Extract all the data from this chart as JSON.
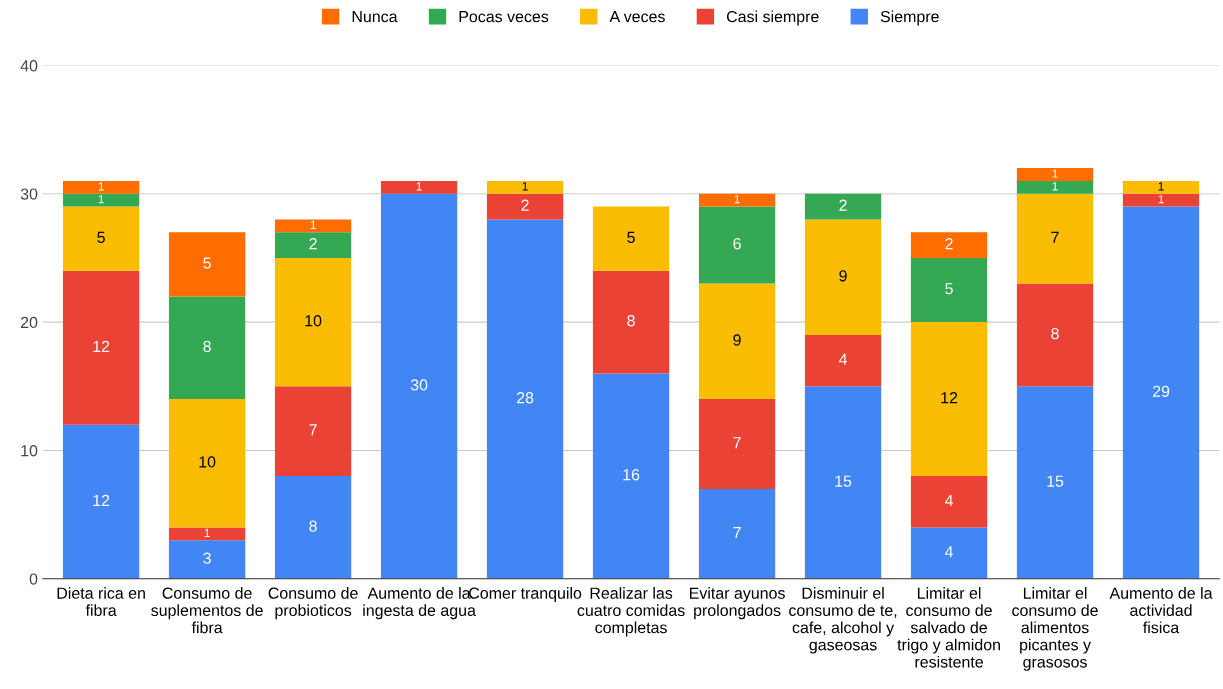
{
  "chart_data": {
    "type": "bar",
    "stacked": true,
    "categories": [
      "Dieta rica en fibra",
      "Consumo de suplementos de fibra",
      "Consumo de probioticos",
      "Aumento de la ingesta de agua",
      "Comer tranquilo",
      "Realizar las cuatro comidas completas",
      "Evitar ayunos prolongados",
      "Disminuir el consumo de te, cafe, alcohol y gaseosas",
      "Limitar el consumo de salvado de trigo y almidon resistente",
      "Limitar el consumo de alimentos picantes y grasosos",
      "Aumento de la actividad fisica"
    ],
    "series": [
      {
        "name": "Siempre",
        "color": "#4285f4",
        "values": [
          12,
          3,
          8,
          30,
          28,
          16,
          7,
          15,
          4,
          15,
          29
        ]
      },
      {
        "name": "Casi siempre",
        "color": "#ea4335",
        "values": [
          12,
          1,
          7,
          1,
          2,
          8,
          7,
          4,
          4,
          8,
          1
        ]
      },
      {
        "name": "A veces",
        "color": "#fbbc04",
        "values": [
          5,
          10,
          10,
          null,
          1,
          5,
          9,
          9,
          12,
          7,
          1
        ]
      },
      {
        "name": "Pocas veces",
        "color": "#34a853",
        "values": [
          1,
          8,
          2,
          null,
          null,
          null,
          6,
          2,
          5,
          1,
          null
        ]
      },
      {
        "name": "Nunca",
        "color": "#ff6d01",
        "values": [
          1,
          5,
          1,
          null,
          null,
          null,
          1,
          null,
          2,
          1,
          null
        ]
      }
    ],
    "ylim": [
      0,
      40
    ],
    "yticks": [
      0,
      10,
      20,
      30,
      40
    ],
    "grid": "y",
    "legend": "top",
    "data_labels": true
  }
}
